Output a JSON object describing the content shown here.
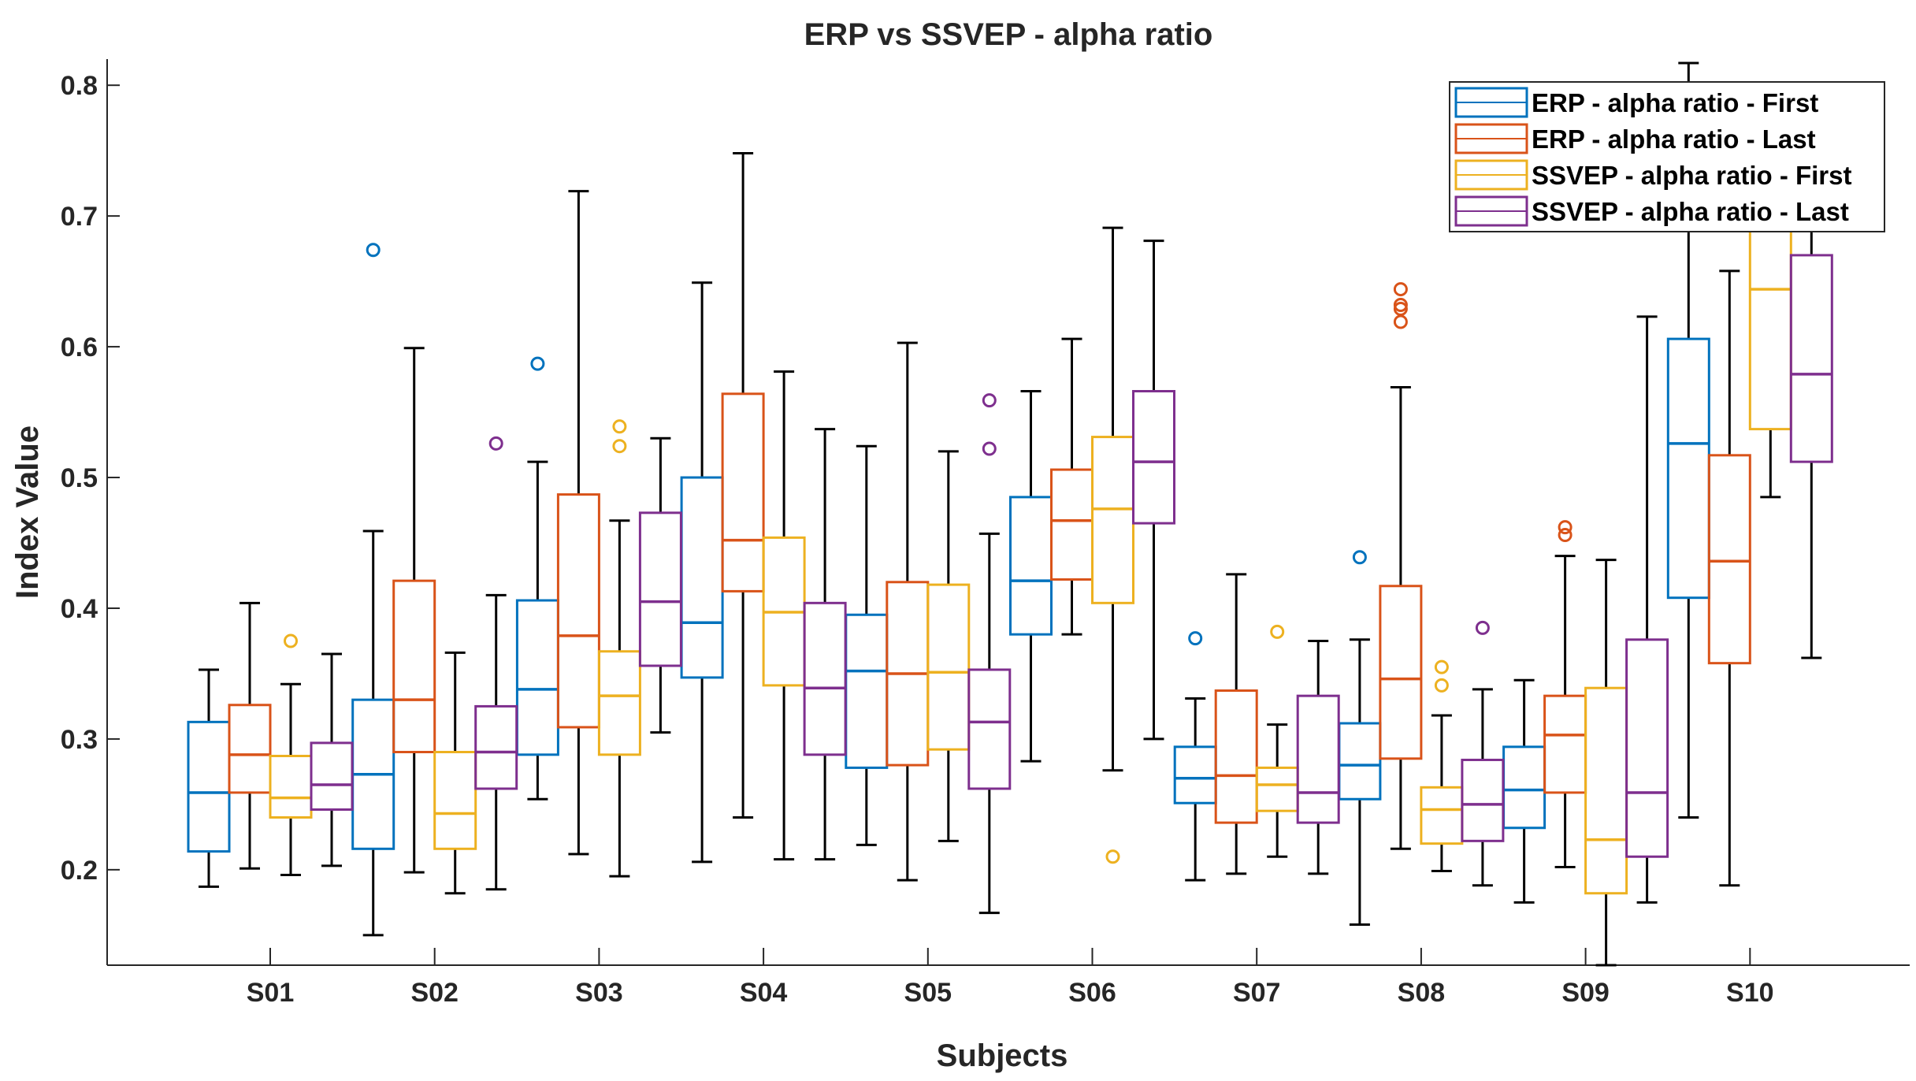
{
  "chart_data": {
    "type": "boxplot",
    "title": "ERP vs SSVEP - alpha ratio",
    "xlabel": "Subjects",
    "ylabel": "Index Value",
    "categories": [
      "S01",
      "S02",
      "S03",
      "S04",
      "S05",
      "S06",
      "S07",
      "S08",
      "S09",
      "S10"
    ],
    "ylim": [
      0.127,
      0.82
    ],
    "yticks": [
      "0.2",
      "0.3",
      "0.4",
      "0.5",
      "0.6",
      "0.7",
      "0.8"
    ],
    "grid": false,
    "legend_position": "top-right",
    "series": [
      {
        "name": "ERP - alpha ratio - First",
        "color": "#0072BD",
        "boxes": [
          {
            "category": "S01",
            "min": 0.187,
            "q1": 0.214,
            "median": 0.259,
            "q3": 0.313,
            "max": 0.353,
            "outliers": []
          },
          {
            "category": "S02",
            "min": 0.15,
            "q1": 0.216,
            "median": 0.273,
            "q3": 0.33,
            "max": 0.459,
            "outliers": [
              0.674
            ]
          },
          {
            "category": "S03",
            "min": 0.254,
            "q1": 0.288,
            "median": 0.338,
            "q3": 0.406,
            "max": 0.512,
            "outliers": [
              0.587
            ]
          },
          {
            "category": "S04",
            "min": 0.206,
            "q1": 0.347,
            "median": 0.389,
            "q3": 0.5,
            "max": 0.649,
            "outliers": []
          },
          {
            "category": "S05",
            "min": 0.219,
            "q1": 0.278,
            "median": 0.352,
            "q3": 0.395,
            "max": 0.524,
            "outliers": []
          },
          {
            "category": "S06",
            "min": 0.283,
            "q1": 0.38,
            "median": 0.421,
            "q3": 0.485,
            "max": 0.566,
            "outliers": []
          },
          {
            "category": "S07",
            "min": 0.192,
            "q1": 0.251,
            "median": 0.27,
            "q3": 0.294,
            "max": 0.331,
            "outliers": [
              0.377
            ]
          },
          {
            "category": "S08",
            "min": 0.158,
            "q1": 0.254,
            "median": 0.28,
            "q3": 0.312,
            "max": 0.376,
            "outliers": [
              0.439
            ]
          },
          {
            "category": "S09",
            "min": 0.175,
            "q1": 0.232,
            "median": 0.261,
            "q3": 0.294,
            "max": 0.345,
            "outliers": []
          },
          {
            "category": "S10",
            "min": 0.24,
            "q1": 0.408,
            "median": 0.526,
            "q3": 0.606,
            "max": 0.817,
            "outliers": []
          }
        ]
      },
      {
        "name": "ERP - alpha ratio - Last",
        "color": "#D95319",
        "boxes": [
          {
            "category": "S01",
            "min": 0.201,
            "q1": 0.259,
            "median": 0.288,
            "q3": 0.326,
            "max": 0.404,
            "outliers": []
          },
          {
            "category": "S02",
            "min": 0.198,
            "q1": 0.29,
            "median": 0.33,
            "q3": 0.421,
            "max": 0.599,
            "outliers": []
          },
          {
            "category": "S03",
            "min": 0.212,
            "q1": 0.309,
            "median": 0.379,
            "q3": 0.487,
            "max": 0.719,
            "outliers": []
          },
          {
            "category": "S04",
            "min": 0.24,
            "q1": 0.413,
            "median": 0.452,
            "q3": 0.564,
            "max": 0.748,
            "outliers": []
          },
          {
            "category": "S05",
            "min": 0.192,
            "q1": 0.28,
            "median": 0.35,
            "q3": 0.42,
            "max": 0.603,
            "outliers": []
          },
          {
            "category": "S06",
            "min": 0.38,
            "q1": 0.422,
            "median": 0.467,
            "q3": 0.506,
            "max": 0.606,
            "outliers": []
          },
          {
            "category": "S07",
            "min": 0.197,
            "q1": 0.236,
            "median": 0.272,
            "q3": 0.337,
            "max": 0.426,
            "outliers": []
          },
          {
            "category": "S08",
            "min": 0.216,
            "q1": 0.285,
            "median": 0.346,
            "q3": 0.417,
            "max": 0.569,
            "outliers": [
              0.619,
              0.629,
              0.632,
              0.644
            ]
          },
          {
            "category": "S09",
            "min": 0.202,
            "q1": 0.259,
            "median": 0.303,
            "q3": 0.333,
            "max": 0.44,
            "outliers": [
              0.456,
              0.462
            ]
          },
          {
            "category": "S10",
            "min": 0.188,
            "q1": 0.358,
            "median": 0.436,
            "q3": 0.517,
            "max": 0.658,
            "outliers": []
          }
        ]
      },
      {
        "name": "SSVEP - alpha ratio - First",
        "color": "#EDB120",
        "boxes": [
          {
            "category": "S01",
            "min": 0.196,
            "q1": 0.24,
            "median": 0.255,
            "q3": 0.287,
            "max": 0.342,
            "outliers": [
              0.375
            ]
          },
          {
            "category": "S02",
            "min": 0.182,
            "q1": 0.216,
            "median": 0.243,
            "q3": 0.29,
            "max": 0.366,
            "outliers": []
          },
          {
            "category": "S03",
            "min": 0.195,
            "q1": 0.288,
            "median": 0.333,
            "q3": 0.367,
            "max": 0.467,
            "outliers": [
              0.524,
              0.539
            ]
          },
          {
            "category": "S04",
            "min": 0.208,
            "q1": 0.341,
            "median": 0.397,
            "q3": 0.454,
            "max": 0.581,
            "outliers": []
          },
          {
            "category": "S05",
            "min": 0.222,
            "q1": 0.292,
            "median": 0.351,
            "q3": 0.418,
            "max": 0.52,
            "outliers": []
          },
          {
            "category": "S06",
            "min": 0.276,
            "q1": 0.404,
            "median": 0.476,
            "q3": 0.531,
            "max": 0.691,
            "outliers": [
              0.21
            ]
          },
          {
            "category": "S07",
            "min": 0.21,
            "q1": 0.245,
            "median": 0.265,
            "q3": 0.278,
            "max": 0.311,
            "outliers": [
              0.382
            ]
          },
          {
            "category": "S08",
            "min": 0.199,
            "q1": 0.22,
            "median": 0.246,
            "q3": 0.263,
            "max": 0.318,
            "outliers": [
              0.341,
              0.355
            ]
          },
          {
            "category": "S09",
            "min": 0.127,
            "q1": 0.182,
            "median": 0.223,
            "q3": 0.339,
            "max": 0.437,
            "outliers": []
          },
          {
            "category": "S10",
            "min": 0.485,
            "q1": 0.537,
            "median": 0.644,
            "q3": 0.7,
            "max": 0.8,
            "outliers": []
          }
        ]
      },
      {
        "name": "SSVEP - alpha ratio - Last",
        "color": "#7E2F8E",
        "boxes": [
          {
            "category": "S01",
            "min": 0.203,
            "q1": 0.246,
            "median": 0.265,
            "q3": 0.297,
            "max": 0.365,
            "outliers": []
          },
          {
            "category": "S02",
            "min": 0.185,
            "q1": 0.262,
            "median": 0.29,
            "q3": 0.325,
            "max": 0.41,
            "outliers": [
              0.526
            ]
          },
          {
            "category": "S03",
            "min": 0.305,
            "q1": 0.356,
            "median": 0.405,
            "q3": 0.473,
            "max": 0.53,
            "outliers": []
          },
          {
            "category": "S04",
            "min": 0.208,
            "q1": 0.288,
            "median": 0.339,
            "q3": 0.404,
            "max": 0.537,
            "outliers": []
          },
          {
            "category": "S05",
            "min": 0.167,
            "q1": 0.262,
            "median": 0.313,
            "q3": 0.353,
            "max": 0.457,
            "outliers": [
              0.522,
              0.559
            ]
          },
          {
            "category": "S06",
            "min": 0.3,
            "q1": 0.465,
            "median": 0.512,
            "q3": 0.566,
            "max": 0.681,
            "outliers": []
          },
          {
            "category": "S07",
            "min": 0.197,
            "q1": 0.236,
            "median": 0.259,
            "q3": 0.333,
            "max": 0.375,
            "outliers": []
          },
          {
            "category": "S08",
            "min": 0.188,
            "q1": 0.222,
            "median": 0.25,
            "q3": 0.284,
            "max": 0.338,
            "outliers": [
              0.385
            ]
          },
          {
            "category": "S09",
            "min": 0.175,
            "q1": 0.21,
            "median": 0.259,
            "q3": 0.376,
            "max": 0.623,
            "outliers": []
          },
          {
            "category": "S10",
            "min": 0.362,
            "q1": 0.512,
            "median": 0.579,
            "q3": 0.67,
            "max": 0.74,
            "outliers": []
          }
        ]
      }
    ]
  }
}
